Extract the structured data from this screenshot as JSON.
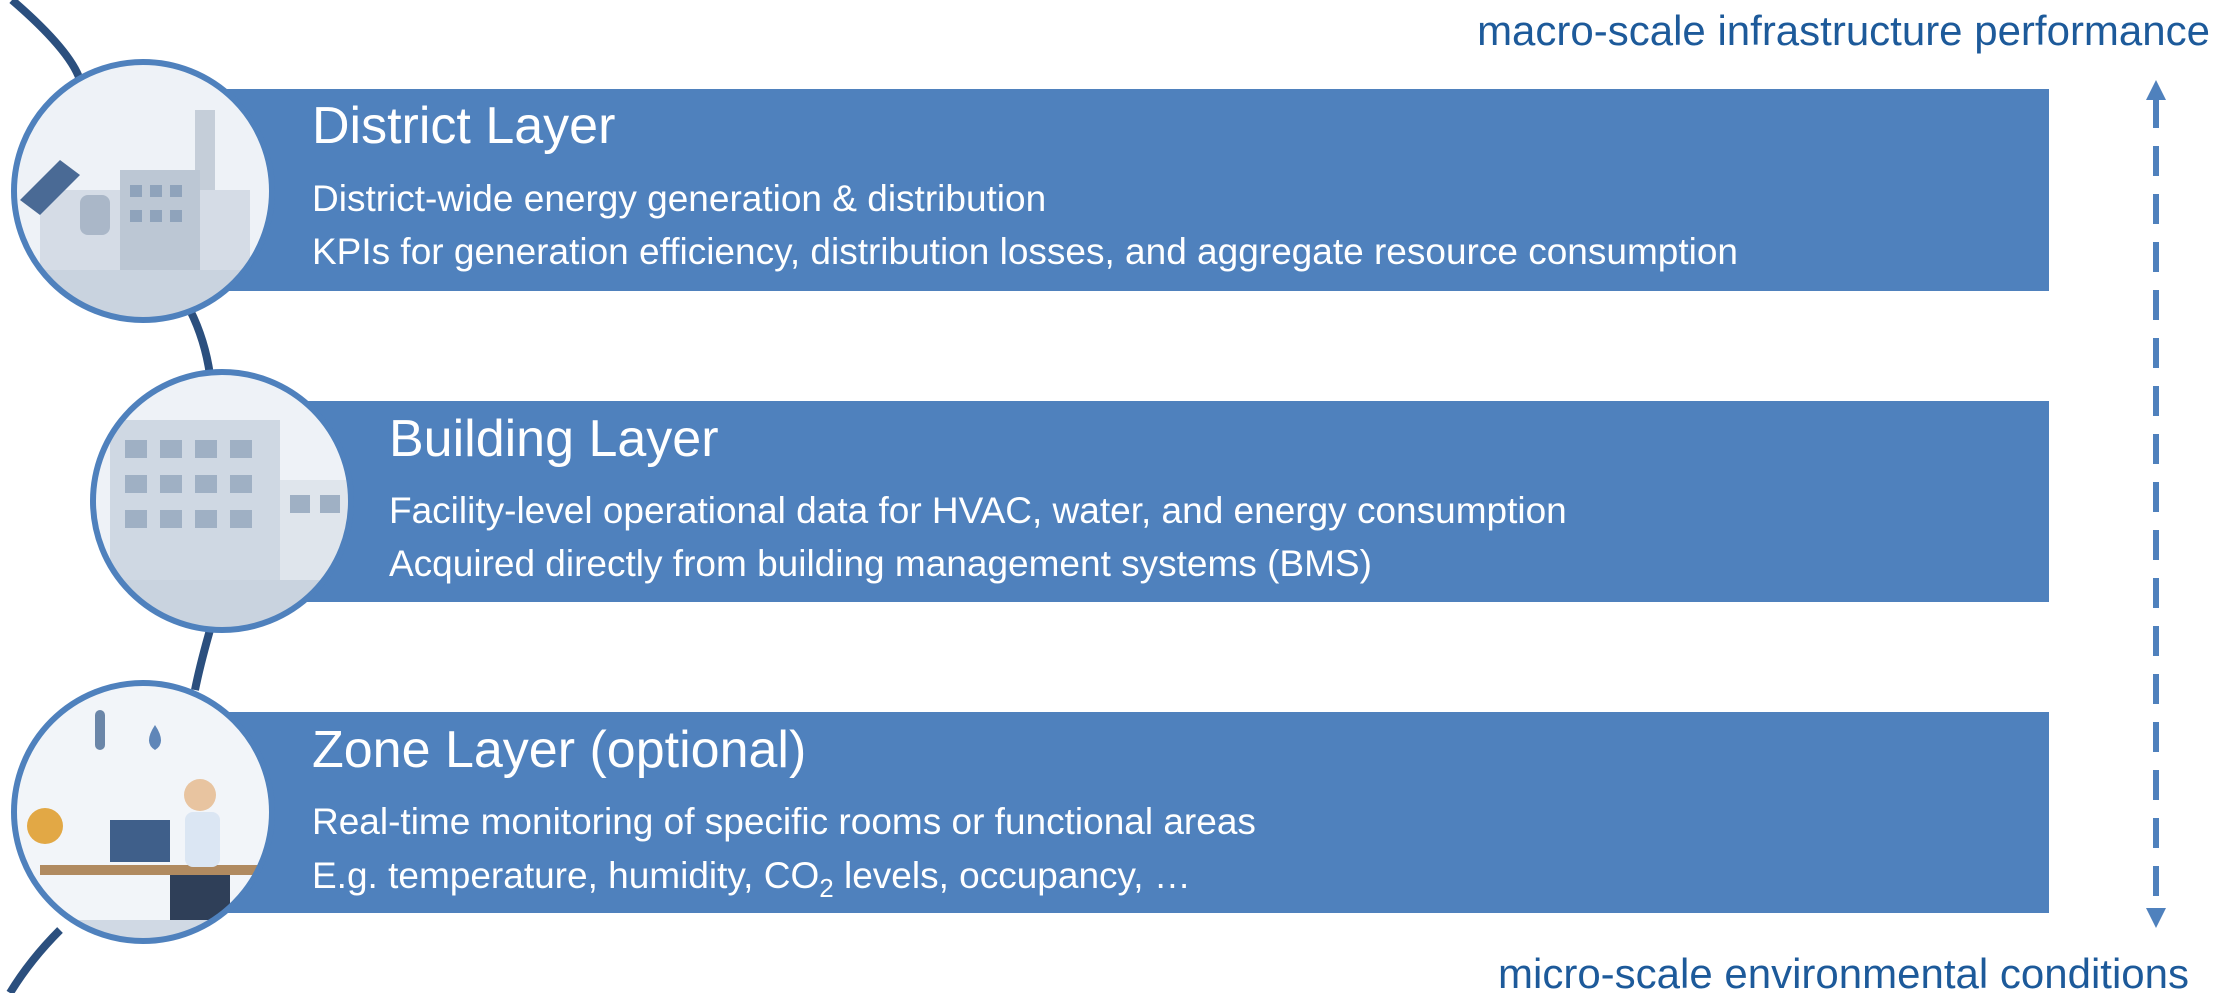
{
  "header": {
    "top_label": "macro-scale infrastructure performance",
    "bottom_label": "micro-scale environmental conditions"
  },
  "layers": [
    {
      "title": "District Layer",
      "lines": [
        {
          "text": "District-wide energy generation & distribution"
        },
        {
          "text": "KPIs for generation efficiency, distribution losses, and aggregate resource consumption"
        }
      ]
    },
    {
      "title": "Building Layer",
      "lines": [
        {
          "text": "Facility-level operational data for HVAC, water, and energy consumption"
        },
        {
          "text": "Acquired directly from building management systems (BMS)"
        }
      ]
    },
    {
      "title": "Zone Layer (optional)",
      "lines": [
        {
          "text": "Real-time monitoring of specific rooms or functional areas"
        },
        {
          "text": "E.g. temperature, humidity, CO",
          "sub": "2",
          "after": " levels, occupancy, …"
        }
      ]
    }
  ]
}
